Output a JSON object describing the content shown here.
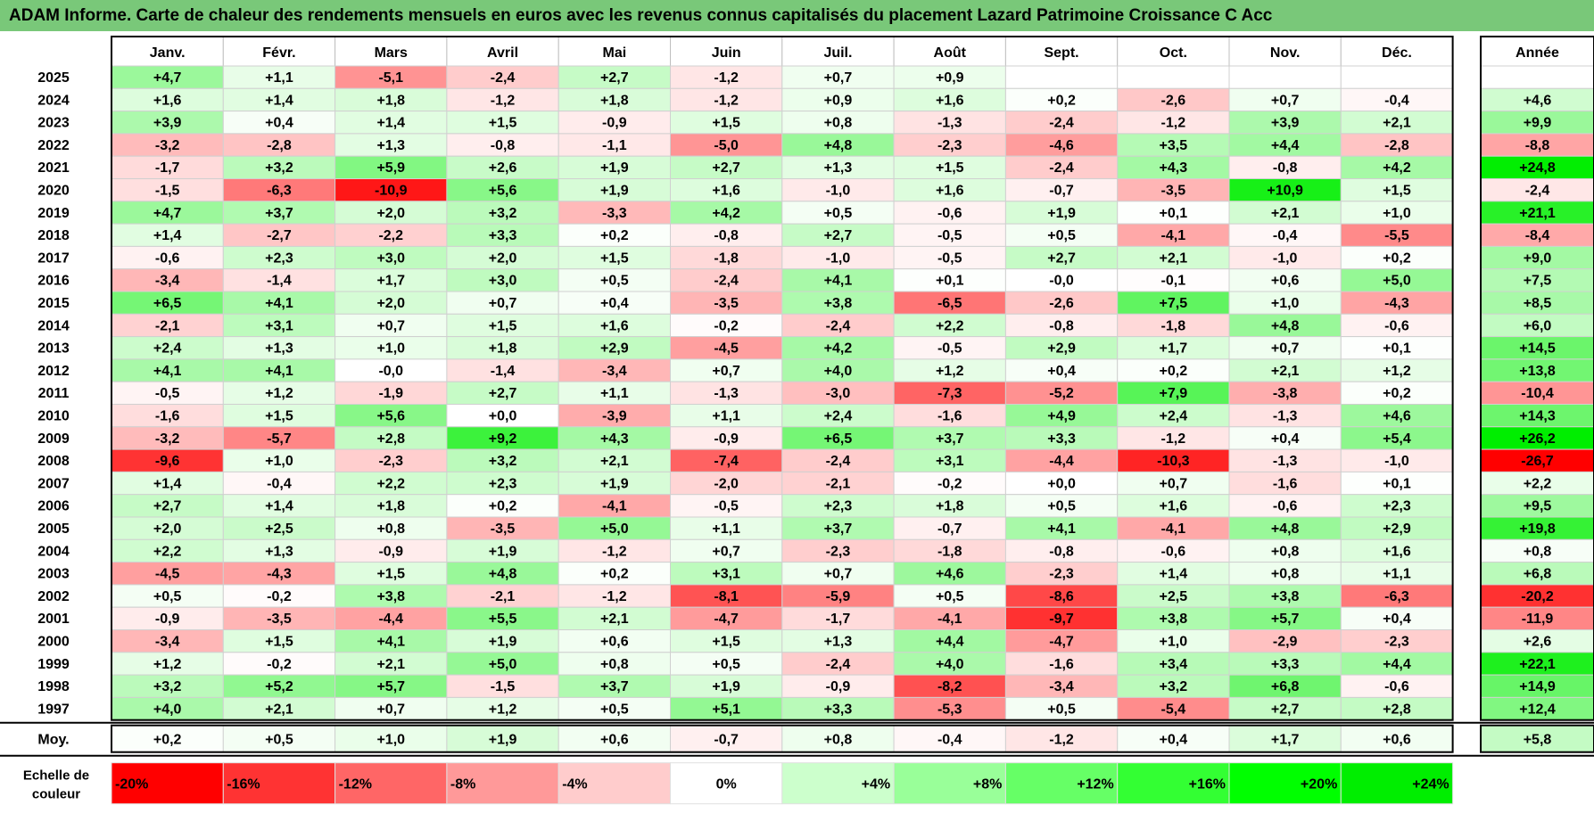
{
  "title": "ADAM Informe. Carte de chaleur des rendements mensuels en euros avec les revenus connus capitalisés du placement Lazard Patrimoine Croissance C Acc",
  "chart_data": {
    "type": "heatmap",
    "months": [
      "Janv.",
      "Févr.",
      "Mars",
      "Avril",
      "Mai",
      "Juin",
      "Juil.",
      "Août",
      "Sept.",
      "Oct.",
      "Nov.",
      "Déc."
    ],
    "year_header": "Année",
    "average_label": "Moy.",
    "rows": [
      {
        "year": "2025",
        "months": [
          "+4,7",
          "+1,1",
          "-5,1",
          "-2,4",
          "+2,7",
          "-1,2",
          "+0,7",
          "+0,9",
          "",
          "",
          "",
          ""
        ],
        "annual": ""
      },
      {
        "year": "2024",
        "months": [
          "+1,6",
          "+1,4",
          "+1,8",
          "-1,2",
          "+1,8",
          "-1,2",
          "+0,9",
          "+1,6",
          "+0,2",
          "-2,6",
          "+0,7",
          "-0,4"
        ],
        "annual": "+4,6"
      },
      {
        "year": "2023",
        "months": [
          "+3,9",
          "+0,4",
          "+1,4",
          "+1,5",
          "-0,9",
          "+1,5",
          "+0,8",
          "-1,3",
          "-2,4",
          "-1,2",
          "+3,9",
          "+2,1"
        ],
        "annual": "+9,9"
      },
      {
        "year": "2022",
        "months": [
          "-3,2",
          "-2,8",
          "+1,3",
          "-0,8",
          "-1,1",
          "-5,0",
          "+4,8",
          "-2,3",
          "-4,6",
          "+3,5",
          "+4,4",
          "-2,8"
        ],
        "annual": "-8,8"
      },
      {
        "year": "2021",
        "months": [
          "-1,7",
          "+3,2",
          "+5,9",
          "+2,6",
          "+1,9",
          "+2,7",
          "+1,3",
          "+1,5",
          "-2,4",
          "+4,3",
          "-0,8",
          "+4,2"
        ],
        "annual": "+24,8"
      },
      {
        "year": "2020",
        "months": [
          "-1,5",
          "-6,3",
          "-10,9",
          "+5,6",
          "+1,9",
          "+1,6",
          "-1,0",
          "+1,6",
          "-0,7",
          "-3,5",
          "+10,9",
          "+1,5"
        ],
        "annual": "-2,4"
      },
      {
        "year": "2019",
        "months": [
          "+4,7",
          "+3,7",
          "+2,0",
          "+3,2",
          "-3,3",
          "+4,2",
          "+0,5",
          "-0,6",
          "+1,9",
          "+0,1",
          "+2,1",
          "+1,0"
        ],
        "annual": "+21,1"
      },
      {
        "year": "2018",
        "months": [
          "+1,4",
          "-2,7",
          "-2,2",
          "+3,3",
          "+0,2",
          "-0,8",
          "+2,7",
          "-0,5",
          "+0,5",
          "-4,1",
          "-0,4",
          "-5,5"
        ],
        "annual": "-8,4"
      },
      {
        "year": "2017",
        "months": [
          "-0,6",
          "+2,3",
          "+3,0",
          "+2,0",
          "+1,5",
          "-1,8",
          "-1,0",
          "-0,5",
          "+2,7",
          "+2,1",
          "-1,0",
          "+0,2"
        ],
        "annual": "+9,0"
      },
      {
        "year": "2016",
        "months": [
          "-3,4",
          "-1,4",
          "+1,7",
          "+3,0",
          "+0,5",
          "-2,4",
          "+4,1",
          "+0,1",
          "-0,0",
          "-0,1",
          "+0,6",
          "+5,0"
        ],
        "annual": "+7,5"
      },
      {
        "year": "2015",
        "months": [
          "+6,5",
          "+4,1",
          "+2,0",
          "+0,7",
          "+0,4",
          "-3,5",
          "+3,8",
          "-6,5",
          "-2,6",
          "+7,5",
          "+1,0",
          "-4,3"
        ],
        "annual": "+8,5"
      },
      {
        "year": "2014",
        "months": [
          "-2,1",
          "+3,1",
          "+0,7",
          "+1,5",
          "+1,6",
          "-0,2",
          "-2,4",
          "+2,2",
          "-0,8",
          "-1,8",
          "+4,8",
          "-0,6"
        ],
        "annual": "+6,0"
      },
      {
        "year": "2013",
        "months": [
          "+2,4",
          "+1,3",
          "+1,0",
          "+1,8",
          "+2,9",
          "-4,5",
          "+4,2",
          "-0,5",
          "+2,9",
          "+1,7",
          "+0,7",
          "+0,1"
        ],
        "annual": "+14,5"
      },
      {
        "year": "2012",
        "months": [
          "+4,1",
          "+4,1",
          "-0,0",
          "-1,4",
          "-3,4",
          "+0,7",
          "+4,0",
          "+1,2",
          "+0,4",
          "+0,2",
          "+2,1",
          "+1,2"
        ],
        "annual": "+13,8"
      },
      {
        "year": "2011",
        "months": [
          "-0,5",
          "+1,2",
          "-1,9",
          "+2,7",
          "+1,1",
          "-1,3",
          "-3,0",
          "-7,3",
          "-5,2",
          "+7,9",
          "-3,8",
          "+0,2"
        ],
        "annual": "-10,4"
      },
      {
        "year": "2010",
        "months": [
          "-1,6",
          "+1,5",
          "+5,6",
          "+0,0",
          "-3,9",
          "+1,1",
          "+2,4",
          "-1,6",
          "+4,9",
          "+2,4",
          "-1,3",
          "+4,6"
        ],
        "annual": "+14,3"
      },
      {
        "year": "2009",
        "months": [
          "-3,2",
          "-5,7",
          "+2,8",
          "+9,2",
          "+4,3",
          "-0,9",
          "+6,5",
          "+3,7",
          "+3,3",
          "-1,2",
          "+0,4",
          "+5,4"
        ],
        "annual": "+26,2"
      },
      {
        "year": "2008",
        "months": [
          "-9,6",
          "+1,0",
          "-2,3",
          "+3,2",
          "+2,1",
          "-7,4",
          "-2,4",
          "+3,1",
          "-4,4",
          "-10,3",
          "-1,3",
          "-1,0"
        ],
        "annual": "-26,7"
      },
      {
        "year": "2007",
        "months": [
          "+1,4",
          "-0,4",
          "+2,2",
          "+2,3",
          "+1,9",
          "-2,0",
          "-2,1",
          "-0,2",
          "+0,0",
          "+0,7",
          "-1,6",
          "+0,1"
        ],
        "annual": "+2,2"
      },
      {
        "year": "2006",
        "months": [
          "+2,7",
          "+1,4",
          "+1,8",
          "+0,2",
          "-4,1",
          "-0,5",
          "+2,3",
          "+1,8",
          "+0,5",
          "+1,6",
          "-0,6",
          "+2,3"
        ],
        "annual": "+9,5"
      },
      {
        "year": "2005",
        "months": [
          "+2,0",
          "+2,5",
          "+0,8",
          "-3,5",
          "+5,0",
          "+1,1",
          "+3,7",
          "-0,7",
          "+4,1",
          "-4,1",
          "+4,8",
          "+2,9"
        ],
        "annual": "+19,8"
      },
      {
        "year": "2004",
        "months": [
          "+2,2",
          "+1,3",
          "-0,9",
          "+1,9",
          "-1,2",
          "+0,7",
          "-2,3",
          "-1,8",
          "-0,8",
          "-0,6",
          "+0,8",
          "+1,6"
        ],
        "annual": "+0,8"
      },
      {
        "year": "2003",
        "months": [
          "-4,5",
          "-4,3",
          "+1,5",
          "+4,8",
          "+0,2",
          "+3,1",
          "+0,7",
          "+4,6",
          "-2,3",
          "+1,4",
          "+0,8",
          "+1,1"
        ],
        "annual": "+6,8"
      },
      {
        "year": "2002",
        "months": [
          "+0,5",
          "-0,2",
          "+3,8",
          "-2,1",
          "-1,2",
          "-8,1",
          "-5,9",
          "+0,5",
          "-8,6",
          "+2,5",
          "+3,8",
          "-6,3"
        ],
        "annual": "-20,2"
      },
      {
        "year": "2001",
        "months": [
          "-0,9",
          "-3,5",
          "-4,4",
          "+5,5",
          "+2,1",
          "-4,7",
          "-1,7",
          "-4,1",
          "-9,7",
          "+3,8",
          "+5,7",
          "+0,4"
        ],
        "annual": "-11,9"
      },
      {
        "year": "2000",
        "months": [
          "-3,4",
          "+1,5",
          "+4,1",
          "+1,9",
          "+0,6",
          "+1,5",
          "+1,3",
          "+4,4",
          "-4,7",
          "+1,0",
          "-2,9",
          "-2,3"
        ],
        "annual": "+2,6"
      },
      {
        "year": "1999",
        "months": [
          "+1,2",
          "-0,2",
          "+2,1",
          "+5,0",
          "+0,8",
          "+0,5",
          "-2,4",
          "+4,0",
          "-1,6",
          "+3,4",
          "+3,3",
          "+4,4"
        ],
        "annual": "+22,1"
      },
      {
        "year": "1998",
        "months": [
          "+3,2",
          "+5,2",
          "+5,7",
          "-1,5",
          "+3,7",
          "+1,9",
          "-0,9",
          "-8,2",
          "-3,4",
          "+3,2",
          "+6,8",
          "-0,6"
        ],
        "annual": "+14,9"
      },
      {
        "year": "1997",
        "months": [
          "+4,0",
          "+2,1",
          "+0,7",
          "+1,2",
          "+0,5",
          "+5,1",
          "+3,3",
          "-5,3",
          "+0,5",
          "-5,4",
          "+2,7",
          "+2,8"
        ],
        "annual": "+12,4"
      }
    ],
    "averages": {
      "months": [
        "+0,2",
        "+0,5",
        "+1,0",
        "+1,9",
        "+0,6",
        "-0,7",
        "+0,8",
        "-0,4",
        "-1,2",
        "+0,4",
        "+1,7",
        "+0,6"
      ],
      "annual": "+5,8"
    },
    "scale": {
      "label_line1": "Echelle de",
      "label_line2": "couleur",
      "steps": [
        {
          "label": "-20%",
          "color": "#ff0000"
        },
        {
          "label": "-16%",
          "color": "#ff3333"
        },
        {
          "label": "-12%",
          "color": "#ff6666"
        },
        {
          "label": "-8%",
          "color": "#ff9999"
        },
        {
          "label": "-4%",
          "color": "#ffcccc"
        },
        {
          "label": "0%",
          "color": "#ffffff"
        },
        {
          "label": "+4%",
          "color": "#ccffcc"
        },
        {
          "label": "+8%",
          "color": "#99ff99"
        },
        {
          "label": "+12%",
          "color": "#66ff66"
        },
        {
          "label": "+16%",
          "color": "#33ff33"
        },
        {
          "label": "+20%",
          "color": "#00ff00"
        },
        {
          "label": "+24%",
          "color": "#00ee00"
        }
      ]
    },
    "colors": {
      "title_bar": "#79c879",
      "negative_full": "#ff0000",
      "positive_full": "#00ff00",
      "neutral": "#ffffff"
    }
  }
}
